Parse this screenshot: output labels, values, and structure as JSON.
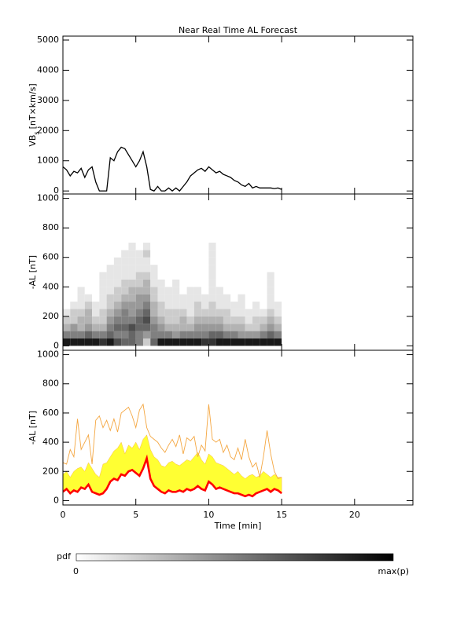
{
  "chart_data": [
    {
      "type": "line",
      "title": "Near Real Time AL Forecast",
      "ylabel": {
        "main": "VB",
        "sub": "s",
        "unit": "[nT×km/s]"
      },
      "color": "#000000",
      "x": [
        0,
        0.25,
        0.5,
        0.75,
        1,
        1.25,
        1.5,
        1.75,
        2,
        2.25,
        2.5,
        2.75,
        3,
        3.25,
        3.5,
        3.75,
        4,
        4.25,
        4.5,
        4.75,
        5,
        5.25,
        5.5,
        5.75,
        6,
        6.25,
        6.5,
        6.75,
        7,
        7.25,
        7.5,
        7.75,
        8,
        8.25,
        8.5,
        8.75,
        9,
        9.25,
        9.5,
        9.75,
        10,
        10.25,
        10.5,
        10.75,
        11,
        11.25,
        11.5,
        11.75,
        12,
        12.25,
        12.5,
        12.75,
        13,
        13.25,
        13.5,
        13.75,
        14,
        14.25,
        14.5,
        14.75,
        15
      ],
      "values": [
        800,
        700,
        500,
        650,
        600,
        750,
        450,
        700,
        800,
        300,
        0,
        0,
        0,
        1100,
        1000,
        1300,
        1450,
        1400,
        1200,
        1000,
        800,
        1000,
        1300,
        800,
        50,
        0,
        150,
        0,
        0,
        100,
        0,
        100,
        0,
        150,
        300,
        500,
        600,
        700,
        750,
        650,
        800,
        700,
        600,
        650,
        550,
        500,
        450,
        350,
        300,
        200,
        150,
        250,
        100,
        150,
        100,
        100,
        100,
        100,
        80,
        100,
        50
      ],
      "xlim": [
        0,
        24
      ],
      "xticks": [
        0,
        5,
        10,
        15,
        20
      ],
      "ylim": [
        -100,
        5130
      ],
      "yticks": [
        0,
        1000,
        2000,
        3000,
        4000,
        5000
      ]
    },
    {
      "type": "heatmap",
      "ylabel": "-AL [nT]",
      "x_bins": [
        0,
        0.5,
        1,
        1.5,
        2,
        2.5,
        3,
        3.5,
        4,
        4.5,
        5,
        5.5,
        6,
        6.5,
        7,
        7.5,
        8,
        8.5,
        9,
        9.5,
        10,
        10.5,
        11,
        11.5,
        12,
        12.5,
        13,
        13.5,
        14,
        14.5,
        15
      ],
      "y_bins": [
        0,
        50,
        100,
        150,
        200,
        250,
        300,
        350,
        400,
        450,
        500,
        550,
        600,
        650,
        700
      ],
      "values": [
        [
          0.9,
          0.5,
          0.3,
          0.2,
          0.1,
          0,
          0,
          0,
          0,
          0,
          0,
          0,
          0,
          0
        ],
        [
          0.9,
          0.5,
          0.4,
          0.2,
          0.2,
          0.1,
          0,
          0,
          0,
          0,
          0,
          0,
          0,
          0
        ],
        [
          0.9,
          0.5,
          0.3,
          0.3,
          0.2,
          0.1,
          0.1,
          0.1,
          0,
          0,
          0,
          0,
          0,
          0
        ],
        [
          0.9,
          0.6,
          0.4,
          0.3,
          0.3,
          0.2,
          0.1,
          0,
          0,
          0,
          0,
          0,
          0,
          0
        ],
        [
          0.9,
          0.5,
          0.3,
          0.2,
          0.1,
          0.1,
          0,
          0,
          0,
          0,
          0,
          0,
          0,
          0
        ],
        [
          0.8,
          0.5,
          0.3,
          0.2,
          0.2,
          0.1,
          0.1,
          0.1,
          0.1,
          0.1,
          0,
          0,
          0,
          0
        ],
        [
          0.9,
          0.6,
          0.5,
          0.4,
          0.3,
          0.2,
          0.2,
          0.1,
          0.1,
          0.1,
          0.1,
          0,
          0,
          0
        ],
        [
          0.7,
          0.5,
          0.6,
          0.5,
          0.4,
          0.3,
          0.2,
          0.2,
          0.1,
          0.1,
          0.1,
          0.1,
          0,
          0
        ],
        [
          0.6,
          0.5,
          0.6,
          0.5,
          0.5,
          0.4,
          0.3,
          0.2,
          0.2,
          0.1,
          0.1,
          0.1,
          0.1,
          0
        ],
        [
          0.6,
          0.6,
          0.7,
          0.5,
          0.4,
          0.4,
          0.3,
          0.3,
          0.2,
          0.1,
          0.1,
          0.1,
          0.1,
          0.1
        ],
        [
          0.5,
          0.5,
          0.6,
          0.6,
          0.5,
          0.4,
          0.4,
          0.3,
          0.2,
          0.2,
          0.1,
          0.1,
          0.1,
          0
        ],
        [
          0.2,
          0.4,
          0.6,
          0.7,
          0.6,
          0.5,
          0.4,
          0.3,
          0.3,
          0.2,
          0.1,
          0.1,
          0.2,
          0.1
        ],
        [
          0.6,
          0.5,
          0.5,
          0.4,
          0.3,
          0.3,
          0.2,
          0.2,
          0.1,
          0.1,
          0.1,
          0,
          0,
          0
        ],
        [
          0.9,
          0.5,
          0.4,
          0.3,
          0.2,
          0.2,
          0.1,
          0.1,
          0.1,
          0,
          0,
          0,
          0,
          0
        ],
        [
          0.9,
          0.5,
          0.3,
          0.2,
          0.2,
          0.1,
          0.1,
          0.1,
          0,
          0,
          0,
          0,
          0,
          0
        ],
        [
          0.9,
          0.4,
          0.3,
          0.2,
          0.2,
          0.1,
          0.1,
          0.1,
          0.1,
          0,
          0,
          0,
          0,
          0
        ],
        [
          0.9,
          0.5,
          0.3,
          0.3,
          0.2,
          0.1,
          0.1,
          0,
          0,
          0,
          0,
          0,
          0,
          0
        ],
        [
          0.9,
          0.5,
          0.3,
          0.2,
          0.1,
          0.1,
          0.1,
          0.1,
          0,
          0,
          0,
          0,
          0,
          0
        ],
        [
          0.9,
          0.5,
          0.4,
          0.3,
          0.2,
          0.2,
          0.1,
          0.1,
          0,
          0,
          0,
          0,
          0,
          0
        ],
        [
          0.8,
          0.5,
          0.4,
          0.3,
          0.2,
          0.1,
          0.1,
          0,
          0,
          0,
          0,
          0,
          0,
          0
        ],
        [
          0.8,
          0.6,
          0.4,
          0.3,
          0.2,
          0.2,
          0.1,
          0.1,
          0.1,
          0.1,
          0.1,
          0.1,
          0.1,
          0.1
        ],
        [
          0.9,
          0.6,
          0.4,
          0.3,
          0.2,
          0.1,
          0.1,
          0.1,
          0,
          0,
          0,
          0,
          0,
          0
        ],
        [
          0.9,
          0.5,
          0.3,
          0.2,
          0.2,
          0.1,
          0.1,
          0,
          0,
          0,
          0,
          0,
          0,
          0
        ],
        [
          0.9,
          0.5,
          0.3,
          0.2,
          0.1,
          0.1,
          0,
          0,
          0,
          0,
          0,
          0,
          0,
          0
        ],
        [
          0.9,
          0.4,
          0.3,
          0.2,
          0.1,
          0.1,
          0.1,
          0,
          0,
          0,
          0,
          0,
          0,
          0
        ],
        [
          0.9,
          0.4,
          0.2,
          0.1,
          0.1,
          0,
          0,
          0,
          0,
          0,
          0,
          0,
          0,
          0
        ],
        [
          0.9,
          0.4,
          0.2,
          0.2,
          0.1,
          0.1,
          0,
          0,
          0,
          0,
          0,
          0,
          0,
          0
        ],
        [
          0.9,
          0.5,
          0.3,
          0.2,
          0.1,
          0,
          0,
          0,
          0,
          0,
          0,
          0,
          0,
          0
        ],
        [
          0.9,
          0.6,
          0.4,
          0.3,
          0.2,
          0.1,
          0.1,
          0.1,
          0.1,
          0.1,
          0,
          0,
          0,
          0
        ],
        [
          0.9,
          0.5,
          0.3,
          0.2,
          0.1,
          0.1,
          0,
          0,
          0,
          0,
          0,
          0,
          0,
          0
        ]
      ],
      "colorbar": {
        "label": "pdf",
        "min_label": "0",
        "max_label": "max(p)"
      },
      "xlim": [
        0,
        24
      ],
      "xticks": [
        0,
        5,
        10,
        15,
        20
      ],
      "ylim": [
        -30,
        1030
      ],
      "yticks": [
        0,
        200,
        400,
        600,
        800,
        1000
      ]
    },
    {
      "type": "area",
      "ylabel": "-AL [nT]",
      "xlabel": "Time [min]",
      "xtick_labels": true,
      "x": [
        0,
        0.25,
        0.5,
        0.75,
        1,
        1.25,
        1.5,
        1.75,
        2,
        2.25,
        2.5,
        2.75,
        3,
        3.25,
        3.5,
        3.75,
        4,
        4.25,
        4.5,
        4.75,
        5,
        5.25,
        5.5,
        5.75,
        6,
        6.25,
        6.5,
        6.75,
        7,
        7.25,
        7.5,
        7.75,
        8,
        8.25,
        8.5,
        8.75,
        9,
        9.25,
        9.5,
        9.75,
        10,
        10.25,
        10.5,
        10.75,
        11,
        11.25,
        11.5,
        11.75,
        12,
        12.25,
        12.5,
        12.75,
        13,
        13.25,
        13.5,
        13.75,
        14,
        14.25,
        14.5,
        14.75,
        15
      ],
      "series": [
        {
          "color": "#ffff33",
          "fill": true,
          "values": [
            180,
            200,
            160,
            200,
            220,
            230,
            200,
            260,
            220,
            180,
            160,
            250,
            260,
            300,
            340,
            360,
            400,
            320,
            380,
            360,
            400,
            350,
            420,
            450,
            350,
            300,
            280,
            240,
            230,
            260,
            270,
            250,
            240,
            260,
            280,
            270,
            300,
            330,
            280,
            250,
            320,
            300,
            260,
            250,
            240,
            220,
            200,
            180,
            200,
            170,
            150,
            170,
            180,
            160,
            170,
            200,
            180,
            160,
            180,
            160,
            160
          ]
        },
        {
          "color": "#f4a640",
          "values": [
            260,
            250,
            350,
            300,
            560,
            350,
            400,
            450,
            250,
            550,
            580,
            500,
            550,
            480,
            560,
            470,
            600,
            620,
            640,
            580,
            500,
            620,
            660,
            500,
            440,
            420,
            400,
            360,
            330,
            380,
            420,
            370,
            450,
            320,
            430,
            410,
            440,
            300,
            380,
            340,
            660,
            420,
            400,
            420,
            330,
            380,
            300,
            280,
            360,
            280,
            420,
            300,
            230,
            260,
            160,
            300,
            480,
            320,
            200,
            150,
            160
          ]
        },
        {
          "color": "#ff0000",
          "values": [
            60,
            80,
            50,
            70,
            60,
            90,
            80,
            110,
            60,
            50,
            40,
            50,
            80,
            130,
            150,
            140,
            180,
            170,
            200,
            210,
            190,
            170,
            220,
            290,
            150,
            100,
            80,
            60,
            50,
            70,
            60,
            60,
            70,
            60,
            80,
            70,
            80,
            100,
            80,
            70,
            130,
            110,
            80,
            90,
            80,
            70,
            60,
            50,
            50,
            40,
            30,
            40,
            30,
            50,
            60,
            70,
            80,
            60,
            80,
            70,
            50
          ]
        }
      ],
      "xlim": [
        0,
        24
      ],
      "xticks": [
        0,
        5,
        10,
        15,
        20
      ],
      "ylim": [
        -30,
        1030
      ],
      "yticks": [
        0,
        200,
        400,
        600,
        800,
        1000
      ]
    }
  ]
}
